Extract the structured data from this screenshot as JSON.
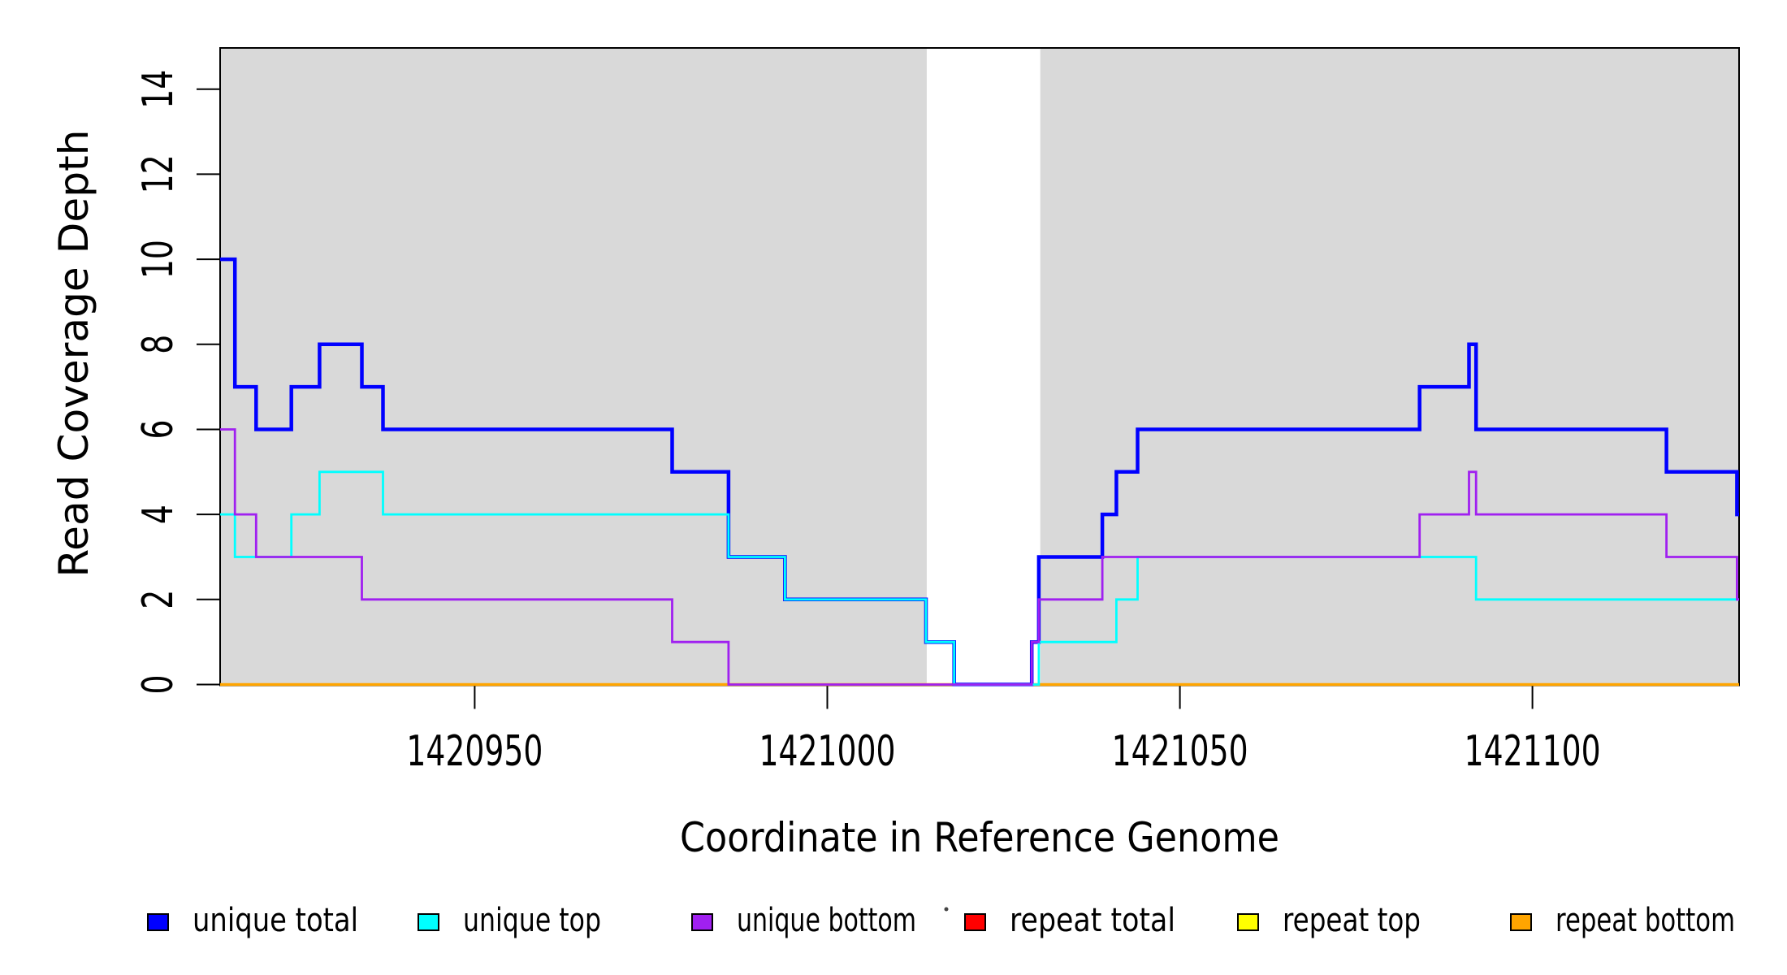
{
  "figure": {
    "x_axis_title": "Coordinate in Reference Genome",
    "y_axis_title": "Read Coverage Depth"
  },
  "chart_data": {
    "type": "line",
    "subtype": "step",
    "title": "",
    "xlabel": "Coordinate in Reference Genome",
    "ylabel": "Read Coverage Depth",
    "xlim": [
      1420913.9,
      1421129.3
    ],
    "ylim": [
      0,
      14.97
    ],
    "x_ticks": [
      1420950,
      1421000,
      1421050,
      1421100
    ],
    "y_ticks": [
      0,
      2,
      4,
      6,
      8,
      10,
      12,
      14
    ],
    "grid": false,
    "legend_position": "bottom",
    "background_shading": {
      "color": "#D9D9D9",
      "regions": [
        [
          1420913.9,
          1421014.1
        ],
        [
          1421030.2,
          1421129.3
        ]
      ]
    },
    "series": [
      {
        "name": "repeat total",
        "color": "#FF0000",
        "width": 2.5,
        "steps": [
          [
            1420913.9,
            0
          ]
        ]
      },
      {
        "name": "repeat top",
        "color": "#FFFF00",
        "width": 2.5,
        "steps": [
          [
            1420913.9,
            0
          ]
        ]
      },
      {
        "name": "repeat bottom",
        "color": "#FFA500",
        "width": 3.5,
        "steps": [
          [
            1420913.9,
            0
          ]
        ]
      },
      {
        "name": "unique total",
        "color": "#0000FF",
        "width": 4.5,
        "steps": [
          [
            1420913.9,
            10
          ],
          [
            1420916,
            7
          ],
          [
            1420919,
            6
          ],
          [
            1420924,
            7
          ],
          [
            1420928,
            8
          ],
          [
            1420934,
            7
          ],
          [
            1420937,
            6
          ],
          [
            1420978,
            5
          ],
          [
            1420986,
            3
          ],
          [
            1420994,
            2
          ],
          [
            1421014,
            1
          ],
          [
            1421018,
            0
          ],
          [
            1421029,
            1
          ],
          [
            1421030,
            3
          ],
          [
            1421039,
            4
          ],
          [
            1421041,
            5
          ],
          [
            1421044,
            6
          ],
          [
            1421084,
            7
          ],
          [
            1421091,
            8
          ],
          [
            1421092,
            6
          ],
          [
            1421119,
            5
          ],
          [
            1421129,
            4
          ]
        ]
      },
      {
        "name": "unique top",
        "color": "#00FFFF",
        "width": 2.8,
        "steps": [
          [
            1420913.9,
            4
          ],
          [
            1420916,
            3
          ],
          [
            1420924,
            4
          ],
          [
            1420928,
            5
          ],
          [
            1420937,
            4
          ],
          [
            1420986,
            3
          ],
          [
            1420994,
            2
          ],
          [
            1421014,
            1
          ],
          [
            1421018,
            0
          ],
          [
            1421030,
            1
          ],
          [
            1421041,
            2
          ],
          [
            1421044,
            3
          ],
          [
            1421092,
            2
          ]
        ]
      },
      {
        "name": "unique bottom",
        "color": "#A020F0",
        "width": 2.8,
        "steps": [
          [
            1420913.9,
            6
          ],
          [
            1420916,
            4
          ],
          [
            1420919,
            3
          ],
          [
            1420934,
            2
          ],
          [
            1420978,
            1
          ],
          [
            1420986,
            0
          ],
          [
            1421029,
            1
          ],
          [
            1421030,
            2
          ],
          [
            1421039,
            3
          ],
          [
            1421084,
            4
          ],
          [
            1421091,
            5
          ],
          [
            1421092,
            4
          ],
          [
            1421119,
            3
          ],
          [
            1421129,
            2
          ]
        ]
      }
    ]
  },
  "legend": {
    "items": [
      {
        "label": "unique total",
        "color": "#0000FF"
      },
      {
        "label": "unique top",
        "color": "#00FFFF"
      },
      {
        "label": "unique bottom",
        "color": "#A020F0"
      },
      {
        "label": "repeat total",
        "color": "#FF0000"
      },
      {
        "label": "repeat top",
        "color": "#FFFF00"
      },
      {
        "label": "repeat bottom",
        "color": "#FFA500"
      }
    ]
  }
}
